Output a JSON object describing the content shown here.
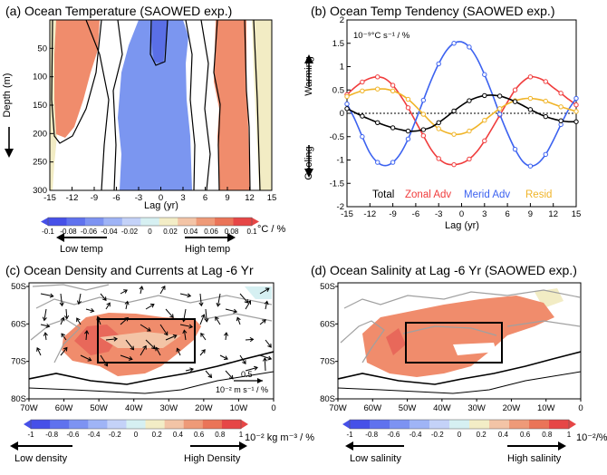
{
  "colors": {
    "blue": "#6b8cf0",
    "dark_blue": "#5b6fe8",
    "salmon": "#f08c6c",
    "pale_yellow": "#f2ecc4",
    "pale_cyan": "#d6f0f2",
    "zonal": "#f03c3c",
    "merid": "#3c62f0",
    "resid": "#f0b428",
    "total": "#000000"
  },
  "colorbar_ticks": [
    "-1",
    "-0.8",
    "-0.6",
    "-0.4",
    "-0.2",
    "0",
    "0.2",
    "0.4",
    "0.6",
    "0.8",
    "1"
  ],
  "colorbar_colors": [
    "#4650e8",
    "#5f72ee",
    "#7d93f2",
    "#9fb4f6",
    "#c4d2f8",
    "#d6f0f2",
    "#f3edc6",
    "#f3c4a6",
    "#ee9a78",
    "#ea7458",
    "#e64646"
  ],
  "chart_data": [
    {
      "panel": "a",
      "type": "heatmap",
      "title": "(a) Ocean Temperature (SAOWED exp.)",
      "xlabel": "Lag (yr)",
      "ylabel": "Depth (m)",
      "xlim": [
        -15,
        15
      ],
      "ylim": [
        300,
        0
      ],
      "x_ticks": [
        "-15",
        "-12",
        "-9",
        "-6",
        "-3",
        "0",
        "3",
        "6",
        "9",
        "12",
        "15"
      ],
      "y_ticks": [
        "50",
        "100",
        "150",
        "200",
        "250",
        "300"
      ],
      "colorbar": {
        "ticks": [
          "-0.1",
          "-0.08",
          "-0.06",
          "-0.04",
          "-0.02",
          "0",
          "0.02",
          "0.04",
          "0.06",
          "0.08",
          "0.1"
        ],
        "unit": "°C / %",
        "low_label": "Low temp",
        "high_label": "High temp"
      }
    },
    {
      "panel": "b",
      "type": "line",
      "title": "(b) Ocean Temp Tendency (SAOWED exp.)",
      "unit_label": "10⁻⁹°C s⁻¹ / %",
      "xlabel": "Lag (yr)",
      "xlim": [
        -15,
        15
      ],
      "ylim": [
        -2,
        2
      ],
      "x_ticks": [
        "-15",
        "-12",
        "-9",
        "-6",
        "-3",
        "0",
        "3",
        "6",
        "9",
        "12",
        "15"
      ],
      "y_ticks": [
        "2",
        "1.5",
        "1",
        "0.5",
        "0",
        "-0.5",
        "-1",
        "-1.5",
        "-2"
      ],
      "warming_label": "Warming",
      "cooling_label": "Cooling",
      "x": [
        -15,
        -14,
        -13,
        -12,
        -11,
        -10,
        -9,
        -8,
        -7,
        -6,
        -5,
        -4,
        -3,
        -2,
        -1,
        0,
        1,
        2,
        3,
        4,
        5,
        6,
        7,
        8,
        9,
        10,
        11,
        12,
        13,
        14,
        15
      ],
      "series": [
        {
          "name": "Total",
          "values": [
            0.1,
            0.02,
            -0.06,
            -0.13,
            -0.2,
            -0.26,
            -0.31,
            -0.35,
            -0.38,
            -0.38,
            -0.35,
            -0.3,
            -0.2,
            -0.08,
            0.05,
            0.17,
            0.27,
            0.34,
            0.38,
            0.39,
            0.37,
            0.32,
            0.25,
            0.17,
            0.08,
            0.0,
            -0.07,
            -0.12,
            -0.16,
            -0.18,
            -0.18
          ]
        },
        {
          "name": "Zonal Adv",
          "values": [
            0.4,
            0.55,
            0.67,
            0.75,
            0.78,
            0.74,
            0.6,
            0.38,
            0.12,
            -0.18,
            -0.48,
            -0.77,
            -0.97,
            -1.08,
            -1.1,
            -1.07,
            -0.98,
            -0.82,
            -0.59,
            -0.32,
            -0.04,
            0.24,
            0.5,
            0.68,
            0.78,
            0.76,
            0.68,
            0.55,
            0.43,
            0.3,
            0.18
          ]
        },
        {
          "name": "Merid Adv",
          "values": [
            0.2,
            -0.12,
            -0.5,
            -0.85,
            -1.05,
            -1.12,
            -1.05,
            -0.86,
            -0.55,
            -0.15,
            0.28,
            0.7,
            1.06,
            1.34,
            1.5,
            1.53,
            1.42,
            1.18,
            0.83,
            0.42,
            -0.02,
            -0.42,
            -0.77,
            -1.03,
            -1.13,
            -1.07,
            -0.88,
            -0.58,
            -0.24,
            0.08,
            0.32
          ]
        },
        {
          "name": "Resid",
          "values": [
            0.36,
            0.43,
            0.48,
            0.51,
            0.52,
            0.52,
            0.48,
            0.41,
            0.3,
            0.15,
            -0.02,
            -0.19,
            -0.33,
            -0.41,
            -0.45,
            -0.44,
            -0.38,
            -0.28,
            -0.15,
            -0.02,
            0.1,
            0.2,
            0.27,
            0.31,
            0.32,
            0.3,
            0.26,
            0.2,
            0.14,
            0.09,
            0.04
          ]
        }
      ]
    },
    {
      "panel": "c",
      "type": "heatmap",
      "title": "(c) Ocean Density and Currents at Lag -6 Yr",
      "lon_ticks": [
        "70W",
        "60W",
        "50W",
        "40W",
        "30W",
        "20W",
        "10W",
        "0"
      ],
      "lat_ticks": [
        "50S",
        "60S",
        "70S",
        "80S"
      ],
      "vector_ref_value": "0.5",
      "vector_ref_unit": "10⁻² m s⁻¹ / %",
      "colorbar": {
        "ticks": [
          "-1",
          "-0.8",
          "-0.6",
          "-0.4",
          "-0.2",
          "0",
          "0.2",
          "0.4",
          "0.6",
          "0.8",
          "1"
        ],
        "unit": "10⁻² kg m⁻³ / %",
        "low_label": "Low density",
        "high_label": "High Density"
      }
    },
    {
      "panel": "d",
      "type": "heatmap",
      "title": "(d) Ocean Salinity at Lag -6 Yr (SAOWED exp.)",
      "lon_ticks": [
        "70W",
        "60W",
        "50W",
        "40W",
        "30W",
        "20W",
        "10W",
        "0"
      ],
      "lat_ticks": [
        "50S",
        "60S",
        "70S",
        "80S"
      ],
      "colorbar": {
        "ticks": [
          "-1",
          "-0.8",
          "-0.6",
          "-0.4",
          "-0.2",
          "0",
          "0.2",
          "0.4",
          "0.6",
          "0.8",
          "1"
        ],
        "unit": "10⁻²/%",
        "low_label": "Low salinity",
        "high_label": "High salinity"
      }
    }
  ]
}
